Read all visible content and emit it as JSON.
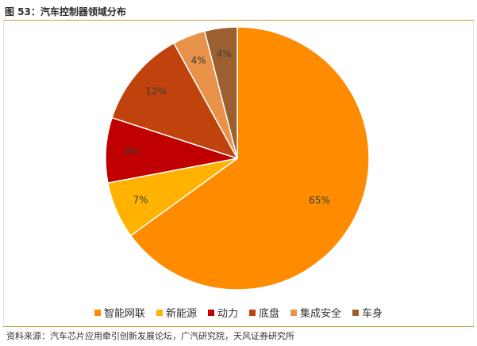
{
  "header": {
    "figure_title": "图 53：汽车控制器领域分布"
  },
  "footer": {
    "source": "资料来源：汽车芯片应用牵引创新发展论坛，广汽研究院，天风证券研究所"
  },
  "chart_data": {
    "type": "pie",
    "title": "",
    "start_angle_deg": 0,
    "direction": "clockwise",
    "slices": [
      {
        "name": "智能网联",
        "value": 65,
        "label": "65%",
        "color": "#FF8C00"
      },
      {
        "name": "新能源",
        "value": 7,
        "label": "7%",
        "color": "#FFB300"
      },
      {
        "name": "动力",
        "value": 8,
        "label": "8%",
        "color": "#C00000"
      },
      {
        "name": "底盘",
        "value": 12,
        "label": "12%",
        "color": "#C0420C"
      },
      {
        "name": "集成安全",
        "value": 4,
        "label": "4%",
        "color": "#E8924A"
      },
      {
        "name": "车身",
        "value": 4,
        "label": "4%",
        "color": "#9C6030"
      }
    ],
    "legend_position": "bottom"
  }
}
